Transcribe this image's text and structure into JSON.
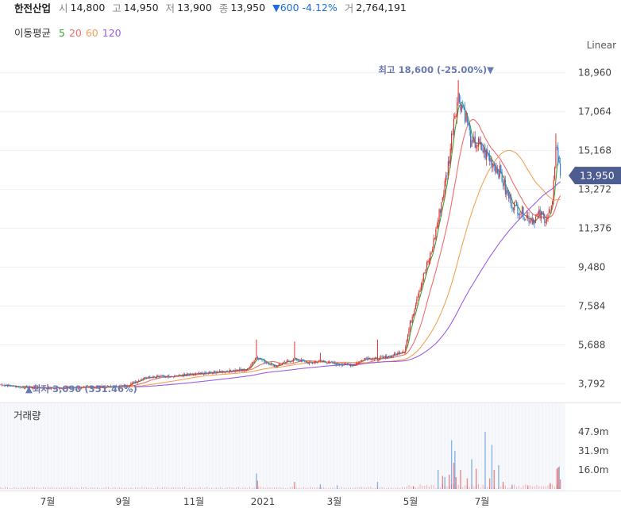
{
  "header": {
    "name": "한전산업",
    "open_label": "시",
    "open": "14,800",
    "high_label": "고",
    "high": "14,950",
    "low_label": "저",
    "low": "13,900",
    "close_label": "종",
    "close": "13,950",
    "change": "▼600 -4.12%",
    "vol_label": "거",
    "volume": "2,764,191"
  },
  "moving_avg": {
    "title": "이동평균",
    "periods": [
      {
        "label": "5",
        "color": "#3aa43a"
      },
      {
        "label": "20",
        "color": "#f26c6c"
      },
      {
        "label": "60",
        "color": "#f5a254"
      },
      {
        "label": "120",
        "color": "#9b5de5"
      }
    ]
  },
  "scale_label": "Linear",
  "volume_title": "거래량",
  "colors": {
    "up": "#e03131",
    "down": "#2f7fd6",
    "price_tag": "#4e5d8f",
    "annotation": "#6a7ab0"
  },
  "chart_data": {
    "type": "candlestick",
    "price_axis": {
      "ticks": [
        18960,
        17064,
        15168,
        13272,
        11376,
        9480,
        7584,
        5688,
        3792
      ],
      "tick_labels": [
        "18,960",
        "17,064",
        "15,168",
        "13,272",
        "11,376",
        "9,480",
        "7,584",
        "5,688",
        "3,792"
      ],
      "range": [
        3150,
        19800
      ]
    },
    "current_price": {
      "value": 13950,
      "label": "13,950"
    },
    "max_annotation": {
      "value": 18600,
      "text": "최고 18,600 (-25.00%)▼"
    },
    "min_annotation": {
      "value": 3090,
      "text": "▲최저 3,090 (351.46%)"
    },
    "time_axis": [
      "7월",
      "9월",
      "11월",
      "2021",
      "3월",
      "5월",
      "7월"
    ],
    "volume_axis": {
      "ticks": [
        47.9,
        31.9,
        16.0
      ],
      "tick_labels": [
        "47.9m",
        "31.9m",
        "16.0m"
      ]
    },
    "close_keypoints": [
      [
        0,
        3750
      ],
      [
        20,
        3620
      ],
      [
        40,
        3580
      ],
      [
        70,
        3610
      ],
      [
        100,
        3650
      ],
      [
        112,
        3700
      ],
      [
        124,
        3980
      ],
      [
        130,
        4120
      ],
      [
        150,
        4160
      ],
      [
        175,
        4260
      ],
      [
        200,
        4400
      ],
      [
        220,
        4500
      ],
      [
        228,
        5100
      ],
      [
        236,
        4850
      ],
      [
        245,
        4650
      ],
      [
        262,
        5000
      ],
      [
        275,
        4800
      ],
      [
        285,
        4900
      ],
      [
        300,
        4750
      ],
      [
        315,
        4700
      ],
      [
        325,
        5050
      ],
      [
        336,
        5000
      ],
      [
        348,
        5150
      ],
      [
        360,
        5400
      ],
      [
        365,
        6700
      ],
      [
        372,
        8200
      ],
      [
        378,
        9200
      ],
      [
        384,
        10200
      ],
      [
        390,
        11800
      ],
      [
        396,
        13500
      ],
      [
        400,
        14800
      ],
      [
        404,
        16800
      ],
      [
        408,
        17800
      ],
      [
        412,
        17300
      ],
      [
        416,
        16600
      ],
      [
        420,
        15300
      ],
      [
        424,
        15600
      ],
      [
        428,
        15300
      ],
      [
        434,
        14900
      ],
      [
        440,
        14500
      ],
      [
        446,
        14000
      ],
      [
        450,
        13200
      ],
      [
        456,
        12600
      ],
      [
        462,
        12300
      ],
      [
        468,
        12000
      ],
      [
        474,
        11800
      ],
      [
        480,
        12000
      ],
      [
        486,
        11900
      ],
      [
        492,
        12400
      ],
      [
        495,
        15600
      ],
      [
        499,
        13950
      ]
    ],
    "volume_spikes": [
      [
        228,
        13
      ],
      [
        229,
        7
      ],
      [
        262,
        6
      ],
      [
        285,
        4
      ],
      [
        300,
        3
      ],
      [
        336,
        6
      ],
      [
        368,
        2
      ],
      [
        390,
        16
      ],
      [
        394,
        11
      ],
      [
        396,
        10
      ],
      [
        400,
        12
      ],
      [
        402,
        41
      ],
      [
        404,
        22
      ],
      [
        405,
        32
      ],
      [
        406,
        10
      ],
      [
        410,
        16
      ],
      [
        416,
        9
      ],
      [
        420,
        25
      ],
      [
        424,
        17
      ],
      [
        432,
        48
      ],
      [
        436,
        9
      ],
      [
        438,
        37
      ],
      [
        440,
        16
      ],
      [
        444,
        20
      ],
      [
        448,
        6
      ],
      [
        456,
        3
      ],
      [
        470,
        3
      ],
      [
        490,
        5
      ],
      [
        496,
        17
      ],
      [
        497,
        18
      ],
      [
        498,
        19
      ],
      [
        499,
        8
      ]
    ]
  }
}
